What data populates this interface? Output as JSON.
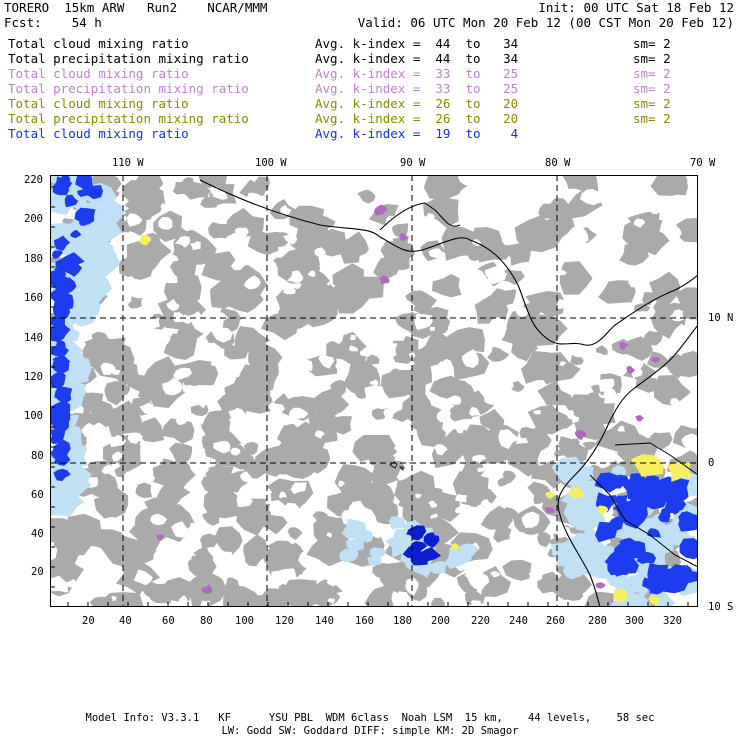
{
  "header": {
    "line1_left": "TORERO  15km ARW   Run2    NCAR/MMM",
    "line1_right": "Init: 00 UTC Sat 18 Feb 12",
    "line2_left": "Fcst:    54 h",
    "line2_right": "Valid: 06 UTC Mon 20 Feb 12 (00 CST Mon 20 Feb 12)"
  },
  "legend": [
    {
      "field": "Total cloud mixing ratio",
      "kindex": "Avg. k-index =  44  to   34",
      "sm": "sm= 2",
      "color": "#000000"
    },
    {
      "field": "Total precipitation mixing ratio",
      "kindex": "Avg. k-index =  44  to   34",
      "sm": "sm= 2",
      "color": "#000000"
    },
    {
      "field": "Total cloud mixing ratio",
      "kindex": "Avg. k-index =  33  to   25",
      "sm": "sm= 2",
      "color": "#c080d0"
    },
    {
      "field": "Total precipitation mixing ratio",
      "kindex": "Avg. k-index =  33  to   25",
      "sm": "sm= 2",
      "color": "#c080d0"
    },
    {
      "field": "Total cloud mixing ratio",
      "kindex": "Avg. k-index =  26  to   20",
      "sm": "sm= 2",
      "color": "#8a8a00"
    },
    {
      "field": "Total precipitation mixing ratio",
      "kindex": "Avg. k-index =  26  to   20",
      "sm": "sm= 2",
      "color": "#8a8a00"
    },
    {
      "field": "Total cloud mixing ratio",
      "kindex": "Avg. k-index =  19  to    4",
      "sm": "",
      "color": "#1530e0"
    }
  ],
  "axes": {
    "top_lon_labels": [
      "110 W",
      "100 W",
      "90 W",
      "80 W",
      "70 W"
    ],
    "right_lat_labels": [
      "10 N",
      "0",
      "10 S"
    ],
    "left_y_ticks": [
      "220",
      "200",
      "180",
      "160",
      "140",
      "120",
      "100",
      "80",
      "60",
      "40",
      "20"
    ],
    "bottom_x_ticks": [
      "20",
      "40",
      "60",
      "80",
      "100",
      "120",
      "140",
      "160",
      "180",
      "200",
      "220",
      "240",
      "260",
      "280",
      "300",
      "320"
    ]
  },
  "footer": {
    "line1": "Model Info: V3.3.1   KF      YSU PBL  WDM 6class  Noah LSM  15 km,    44 levels,    58 sec",
    "line2": "LW: Godd SW: Goddard DIFF: simple KM: 2D Smagor"
  },
  "colors": {
    "cloud_gray": "#aaaaaa",
    "precip_light_blue": "#bfe0f5",
    "precip_blue": "#1c3cf0",
    "precip_dark_blue": "#0b1fd0",
    "purple": "#b068c0",
    "yellow": "#f6f060",
    "coastline": "#000000"
  }
}
